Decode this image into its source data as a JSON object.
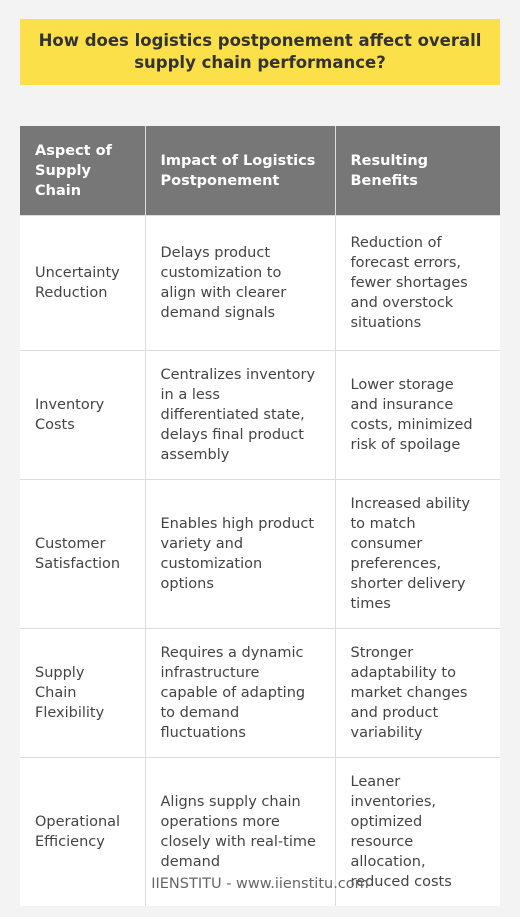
{
  "title": "How does logistics postponement affect overall supply chain performance?",
  "table": {
    "headers": [
      "Aspect of Supply Chain",
      "Impact of Logistics Postponement",
      "Resulting Benefits"
    ],
    "rows": [
      [
        "Uncertainty Reduction",
        "Delays product customization to align with clearer demand signals",
        "Reduction of forecast errors, fewer shortages and overstock situations"
      ],
      [
        "Inventory Costs",
        "Centralizes inventory in a less differentiated state, delays final product assembly",
        "Lower storage and insurance costs, minimized risk of spoilage"
      ],
      [
        "Customer Satisfaction",
        "Enables high product variety and customization options",
        "Increased ability to match consumer preferences, shorter delivery times"
      ],
      [
        "Supply Chain Flexibility",
        "Requires a dynamic infrastructure capable of adapting to demand fluctuations",
        "Stronger adaptability to market changes and product variability"
      ],
      [
        "Operational Efficiency",
        "Aligns supply chain operations more closely with real-time demand",
        "Leaner inventories, optimized resource allocation, reduced costs"
      ]
    ]
  },
  "footer": "IIENSTITU - www.iienstitu.com",
  "colors": {
    "title_background": "#fce04a",
    "header_background": "#777777",
    "page_background": "#f3f3f3"
  }
}
